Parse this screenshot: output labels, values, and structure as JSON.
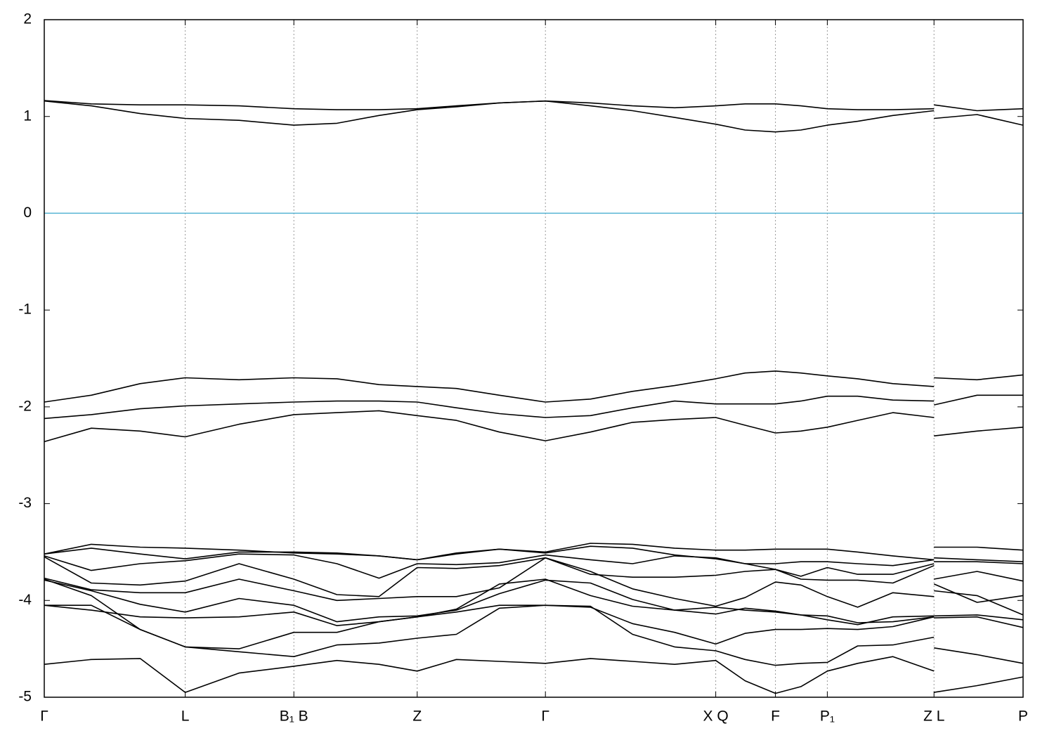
{
  "chart_data": {
    "type": "line",
    "x": [
      0,
      0.048,
      0.098,
      0.144,
      0.199,
      0.255,
      0.299,
      0.342,
      0.381,
      0.421,
      0.465,
      0.512,
      0.558,
      0.601,
      0.644,
      0.686,
      0.716,
      0.747,
      0.773,
      0.8,
      0.831,
      0.867,
      0.909,
      0.909,
      0.909,
      0.953,
      1
    ],
    "xlim": [
      0,
      1
    ],
    "xticks": [
      {
        "value": 0,
        "label": "Γ"
      },
      {
        "value": 0.144,
        "label": "L"
      },
      {
        "value": 0.255,
        "label": "B₁ B"
      },
      {
        "value": 0.381,
        "label": "Z"
      },
      {
        "value": 0.512,
        "label": "Γ"
      },
      {
        "value": 0.686,
        "label": "X Q"
      },
      {
        "value": 0.747,
        "label": "F"
      },
      {
        "value": 0.8,
        "label": "P₁"
      },
      {
        "value": 0.909,
        "label": "Z L"
      },
      {
        "value": 1,
        "label": "P"
      }
    ],
    "ylim": [
      -5,
      2
    ],
    "yticks": [
      -5,
      -4,
      -3,
      -2,
      -1,
      0,
      1,
      2
    ],
    "grid": true,
    "fermi_level": 0,
    "fermi_color": "#56b4d3",
    "line_color": "#000000",
    "series": [
      {
        "values": [
          1.165,
          1.13,
          1.12,
          1.12,
          1.11,
          1.08,
          1.07,
          1.07,
          1.08,
          1.11,
          1.14,
          1.16,
          1.14,
          1.11,
          1.09,
          1.11,
          1.13,
          1.13,
          1.11,
          1.08,
          1.07,
          1.07,
          1.08,
          null,
          1.12,
          1.06,
          1.08
        ]
      },
      {
        "values": [
          1.16,
          1.11,
          1.03,
          0.98,
          0.96,
          0.91,
          0.93,
          1.01,
          1.07,
          1.1,
          1.14,
          1.16,
          1.11,
          1.06,
          0.99,
          0.92,
          0.86,
          0.84,
          0.86,
          0.91,
          0.95,
          1.01,
          1.06,
          null,
          0.98,
          1.02,
          0.91
        ]
      },
      {
        "values": [
          -1.95,
          -1.88,
          -1.76,
          -1.7,
          -1.72,
          -1.7,
          -1.71,
          -1.77,
          -1.79,
          -1.81,
          -1.88,
          -1.95,
          -1.92,
          -1.84,
          -1.78,
          -1.71,
          -1.65,
          -1.63,
          -1.65,
          -1.68,
          -1.71,
          -1.76,
          -1.79,
          null,
          -1.7,
          -1.72,
          -1.67
        ]
      },
      {
        "values": [
          -2.12,
          -2.08,
          -2.02,
          -1.99,
          -1.97,
          -1.95,
          -1.94,
          -1.94,
          -1.95,
          -2.01,
          -2.07,
          -2.11,
          -2.09,
          -2.01,
          -1.94,
          -1.97,
          -1.97,
          -1.97,
          -1.94,
          -1.89,
          -1.89,
          -1.93,
          -1.94,
          null,
          -1.98,
          -1.88,
          -1.88
        ]
      },
      {
        "values": [
          -2.36,
          -2.22,
          -2.25,
          -2.31,
          -2.18,
          -2.08,
          -2.06,
          -2.04,
          -2.09,
          -2.14,
          -2.26,
          -2.35,
          -2.26,
          -2.16,
          -2.13,
          -2.11,
          -2.19,
          -2.27,
          -2.25,
          -2.21,
          -2.14,
          -2.06,
          -2.11,
          null,
          -2.3,
          -2.25,
          -2.21
        ]
      },
      {
        "values": [
          -3.52,
          -3.42,
          -3.45,
          -3.46,
          -3.48,
          -3.51,
          -3.52,
          -3.54,
          -3.58,
          -3.52,
          -3.47,
          -3.5,
          -3.41,
          -3.42,
          -3.46,
          -3.48,
          -3.48,
          -3.47,
          -3.47,
          -3.47,
          -3.5,
          -3.54,
          -3.58,
          null,
          -3.45,
          -3.45,
          -3.48
        ]
      },
      {
        "values": [
          -3.52,
          -3.46,
          -3.52,
          -3.57,
          -3.5,
          -3.5,
          -3.51,
          -3.54,
          -3.58,
          -3.51,
          -3.47,
          -3.51,
          -3.44,
          -3.46,
          -3.53,
          -3.57,
          -3.62,
          -3.62,
          -3.6,
          -3.6,
          -3.62,
          -3.64,
          -3.58,
          null,
          -3.56,
          -3.58,
          -3.6
        ]
      },
      {
        "values": [
          -3.54,
          -3.69,
          -3.62,
          -3.59,
          -3.52,
          -3.53,
          -3.62,
          -3.77,
          -3.62,
          -3.63,
          -3.61,
          -3.53,
          -3.58,
          -3.62,
          -3.54,
          -3.56,
          -3.62,
          -3.68,
          -3.75,
          -3.66,
          -3.73,
          -3.73,
          -3.62,
          null,
          -3.6,
          -3.6,
          -3.62
        ]
      },
      {
        "values": [
          -3.55,
          -3.82,
          -3.84,
          -3.8,
          -3.62,
          -3.78,
          -3.94,
          -3.96,
          -3.66,
          -3.67,
          -3.64,
          -3.56,
          -3.73,
          -3.76,
          -3.76,
          -3.74,
          -3.7,
          -3.68,
          -3.78,
          -3.79,
          -3.79,
          -3.82,
          -3.64,
          null,
          -3.78,
          -3.7,
          -3.8
        ]
      },
      {
        "values": [
          -3.77,
          -3.89,
          -3.92,
          -3.92,
          -3.78,
          -3.9,
          -4.0,
          -3.98,
          -3.96,
          -3.96,
          -3.87,
          -3.56,
          -3.7,
          -3.88,
          -3.98,
          -4.06,
          -3.97,
          -3.81,
          -3.84,
          -3.96,
          -4.07,
          -3.92,
          -3.96,
          null,
          -3.9,
          -3.95,
          -4.15
        ]
      },
      {
        "values": [
          -3.79,
          -3.9,
          -4.04,
          -4.12,
          -3.98,
          -4.05,
          -4.22,
          -4.17,
          -4.16,
          -4.1,
          -3.93,
          -3.79,
          -3.82,
          -3.99,
          -4.1,
          -4.14,
          -4.08,
          -4.11,
          -4.15,
          -4.2,
          -4.25,
          -4.17,
          -4.16,
          null,
          -3.83,
          -4.02,
          -3.95
        ]
      },
      {
        "values": [
          -4.05,
          -4.1,
          -4.17,
          -4.18,
          -4.17,
          -4.12,
          -4.26,
          -4.22,
          -4.17,
          -4.09,
          -3.83,
          -3.78,
          -3.95,
          -4.06,
          -4.1,
          -4.07,
          -4.1,
          -4.12,
          -4.15,
          -4.16,
          -4.23,
          -4.22,
          -4.17,
          null,
          -4.16,
          -4.15,
          -4.2
        ]
      },
      {
        "values": [
          -3.78,
          -3.95,
          -4.3,
          -4.48,
          -4.5,
          -4.33,
          -4.33,
          -4.22,
          -4.17,
          -4.12,
          -4.05,
          -4.05,
          -4.07,
          -4.24,
          -4.33,
          -4.45,
          -4.34,
          -4.3,
          -4.3,
          -4.29,
          -4.3,
          -4.27,
          -4.17,
          null,
          -4.18,
          -4.17,
          -4.28
        ]
      },
      {
        "values": [
          -4.05,
          -4.05,
          -4.3,
          -4.48,
          -4.53,
          -4.58,
          -4.46,
          -4.44,
          -4.39,
          -4.35,
          -4.08,
          -4.05,
          -4.06,
          -4.35,
          -4.48,
          -4.52,
          -4.61,
          -4.67,
          -4.65,
          -4.64,
          -4.47,
          -4.46,
          -4.38,
          null,
          -4.49,
          -4.56,
          -4.65
        ]
      },
      {
        "values": [
          -4.66,
          -4.61,
          -4.6,
          -4.95,
          -4.75,
          -4.68,
          -4.62,
          -4.66,
          -4.73,
          -4.61,
          -4.63,
          -4.65,
          -4.6,
          -4.63,
          -4.66,
          -4.62,
          -4.83,
          -4.96,
          -4.89,
          -4.73,
          -4.65,
          -4.58,
          -4.73,
          null,
          -4.95,
          -4.88,
          -4.79
        ]
      }
    ]
  }
}
